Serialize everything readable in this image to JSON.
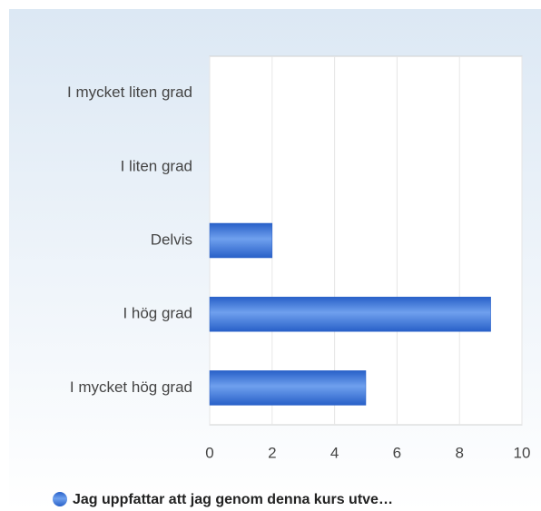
{
  "chart_data": {
    "type": "bar",
    "orientation": "horizontal",
    "categories": [
      "I mycket liten grad",
      "I liten grad",
      "Delvis",
      "I hög grad",
      "I mycket hög grad"
    ],
    "series": [
      {
        "name": "Jag uppfattar att jag genom denna kurs utve…",
        "color": "#2860c8",
        "values": [
          0,
          0,
          2,
          9,
          5
        ]
      }
    ],
    "xlim": [
      0,
      10
    ],
    "xticks": [
      0,
      2,
      4,
      6,
      8,
      10
    ],
    "grid": true,
    "legend": "bottom"
  }
}
